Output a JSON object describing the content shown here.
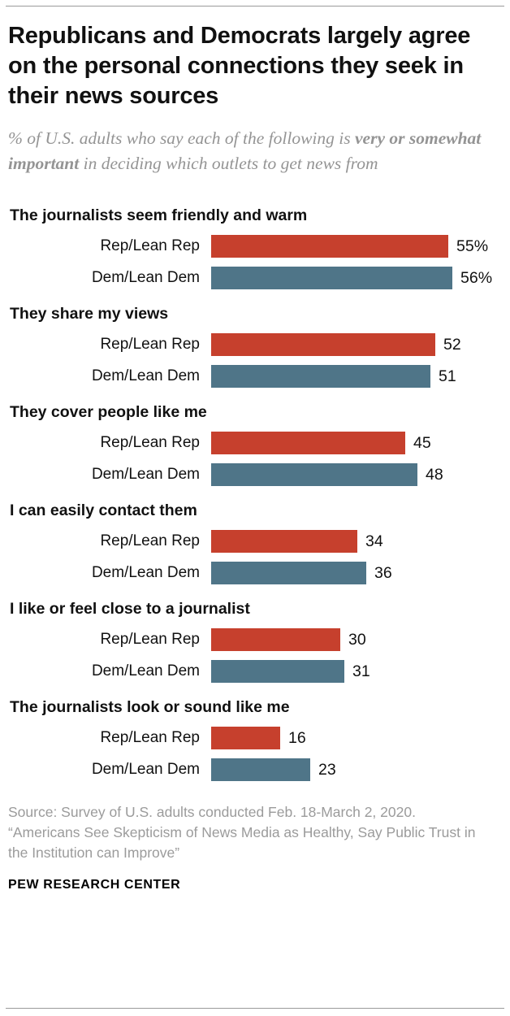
{
  "header": {
    "title": "Republicans and Democrats largely agree on the personal connections they seek in their news sources",
    "subtitle_prefix": "% of U.S. adults who say each of the following is ",
    "subtitle_bold": "very or somewhat important",
    "subtitle_suffix": " in deciding which outlets to get news from"
  },
  "chart_data": {
    "type": "bar",
    "orientation": "horizontal",
    "xlim": [
      0,
      60
    ],
    "legend_position": "none",
    "grid": false,
    "series_labels": [
      "Rep/Lean Rep",
      "Dem/Lean Dem"
    ],
    "colors": {
      "rep": "#c6402d",
      "dem": "#4f7588"
    },
    "groups": [
      {
        "category": "The journalists seem friendly and warm",
        "rep": 55,
        "dem": 56,
        "rep_label": "55%",
        "dem_label": "56%"
      },
      {
        "category": "They share my views",
        "rep": 52,
        "dem": 51,
        "rep_label": "52",
        "dem_label": "51"
      },
      {
        "category": "They cover people like me",
        "rep": 45,
        "dem": 48,
        "rep_label": "45",
        "dem_label": "48"
      },
      {
        "category": "I can easily contact them",
        "rep": 34,
        "dem": 36,
        "rep_label": "34",
        "dem_label": "36"
      },
      {
        "category": "I like or feel close to a journalist",
        "rep": 30,
        "dem": 31,
        "rep_label": "30",
        "dem_label": "31"
      },
      {
        "category": "The journalists look or sound like me",
        "rep": 16,
        "dem": 23,
        "rep_label": "16",
        "dem_label": "23"
      }
    ]
  },
  "footer": {
    "source_line1": "Source: Survey of U.S. adults conducted Feb. 18-March 2, 2020.",
    "source_line2": "“Americans See Skepticism of News Media as Healthy, Say Public Trust in the Institution can Improve”",
    "brand": "PEW RESEARCH CENTER"
  }
}
